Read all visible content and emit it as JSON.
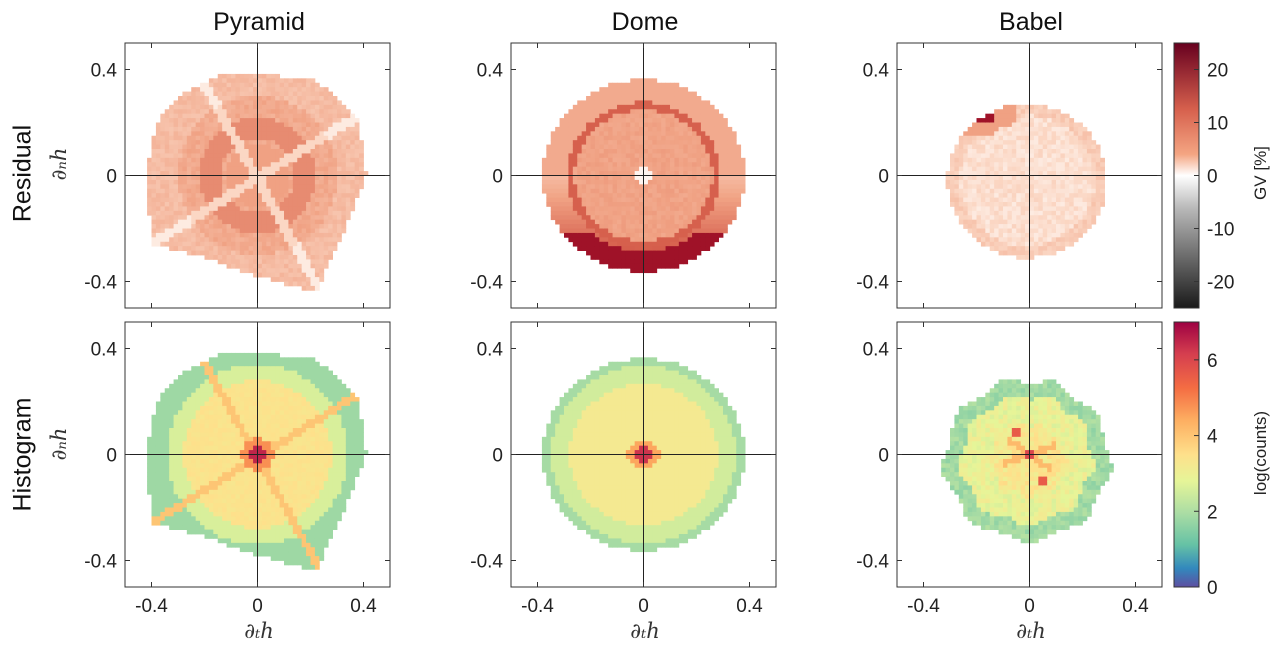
{
  "columns": [
    "Pyramid",
    "Dome",
    "Babel"
  ],
  "rows": [
    "Residual",
    "Histogram"
  ],
  "axis_labels": {
    "x": "∂ₜh",
    "y": "∂ₙh"
  },
  "colorbars": {
    "residual": {
      "label": "GV [%]",
      "ticks": [
        "20",
        "10",
        "0",
        "-10",
        "-20"
      ],
      "tick_values": [
        20,
        10,
        0,
        -10,
        -20
      ],
      "range": [
        -25,
        25
      ],
      "colormap": "RdGy-diverging"
    },
    "histogram": {
      "label": "log(counts)",
      "ticks": [
        "6",
        "4",
        "2",
        "0"
      ],
      "tick_values": [
        6,
        4,
        2,
        0
      ],
      "range": [
        0,
        7
      ],
      "colormap": "Spectral"
    }
  },
  "chart_data": [
    {
      "type": "heatmap",
      "title": "Pyramid",
      "row": "Residual",
      "shape": "square-diamond with crossing ridges",
      "xlim": [
        -0.5,
        0.5
      ],
      "ylim": [
        -0.5,
        0.5
      ],
      "xticks": [
        "-0.4",
        "0",
        "0.4"
      ],
      "yticks": [
        "0.4",
        "0",
        "-0.4"
      ],
      "value_range_approx": [
        2,
        14
      ]
    },
    {
      "type": "heatmap",
      "title": "Dome",
      "row": "Residual",
      "shape": "disk with dark outer ring",
      "xlim": [
        -0.5,
        0.5
      ],
      "ylim": [
        -0.5,
        0.5
      ],
      "xticks": [
        "-0.4",
        "0",
        "0.4"
      ],
      "yticks": [
        "0.4",
        "0",
        "-0.4"
      ],
      "value_range_approx": [
        2,
        22
      ]
    },
    {
      "type": "heatmap",
      "title": "Babel",
      "row": "Residual",
      "shape": "faint disk",
      "xlim": [
        -0.5,
        0.5
      ],
      "ylim": [
        -0.5,
        0.5
      ],
      "xticks": [
        "-0.4",
        "0",
        "0.4"
      ],
      "yticks": [
        "0.4",
        "0",
        "-0.4"
      ],
      "value_range_approx": [
        0,
        20
      ]
    },
    {
      "type": "heatmap",
      "title": "Pyramid",
      "row": "Histogram",
      "shape": "square-diamond with crossing ridges",
      "xlim": [
        -0.5,
        0.5
      ],
      "ylim": [
        -0.5,
        0.5
      ],
      "xticks": [
        "-0.4",
        "0",
        "0.4"
      ],
      "yticks": [
        "0.4",
        "0",
        "-0.4"
      ],
      "value_range_approx": [
        1,
        7
      ]
    },
    {
      "type": "heatmap",
      "title": "Dome",
      "row": "Histogram",
      "shape": "disk with bright center",
      "xlim": [
        -0.5,
        0.5
      ],
      "ylim": [
        -0.5,
        0.5
      ],
      "xticks": [
        "-0.4",
        "0",
        "0.4"
      ],
      "yticks": [
        "0.4",
        "0",
        "-0.4"
      ],
      "value_range_approx": [
        1,
        7
      ]
    },
    {
      "type": "heatmap",
      "title": "Babel",
      "row": "Histogram",
      "shape": "noisy disk with cross and two hot spots",
      "xlim": [
        -0.5,
        0.5
      ],
      "ylim": [
        -0.5,
        0.5
      ],
      "xticks": [
        "-0.4",
        "0",
        "0.4"
      ],
      "yticks": [
        "0.4",
        "0",
        "-0.4"
      ],
      "value_range_approx": [
        0,
        7
      ]
    }
  ]
}
